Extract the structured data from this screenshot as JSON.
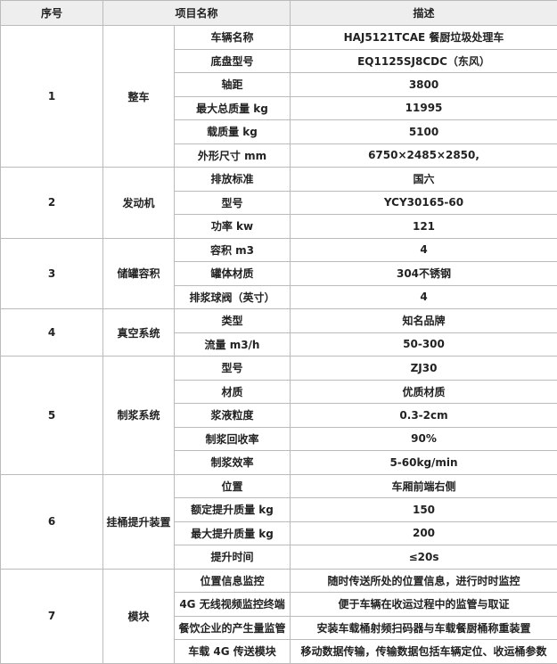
{
  "table": {
    "header": [
      "序号",
      "项目名称",
      "描述"
    ],
    "groups": [
      {
        "no": "1",
        "name": "整车",
        "items": [
          {
            "label": "车辆名称",
            "value": "HAJ5121TCAE 餐厨垃圾处理车"
          },
          {
            "label": "底盘型号",
            "value": "EQ1125SJ8CDC（东风）"
          },
          {
            "label": "轴距",
            "value": "3800"
          },
          {
            "label": "最大总质量 kg",
            "value": "11995"
          },
          {
            "label": "载质量 kg",
            "value": "5100"
          },
          {
            "label": "外形尺寸 mm",
            "value": "6750×2485×2850,"
          }
        ]
      },
      {
        "no": "2",
        "name": "发动机",
        "items": [
          {
            "label": "排放标准",
            "value": "国六"
          },
          {
            "label": "型号",
            "value": "YCY30165-60"
          },
          {
            "label": "功率 kw",
            "value": "121"
          }
        ]
      },
      {
        "no": "3",
        "name": "储罐容积",
        "items": [
          {
            "label": "容积 m3",
            "value": "4"
          },
          {
            "label": "罐体材质",
            "value": "304不锈钢"
          },
          {
            "label": "排浆球阀（英寸）",
            "value": "4"
          }
        ]
      },
      {
        "no": "4",
        "name": "真空系统",
        "items": [
          {
            "label": "类型",
            "value": "知名品牌"
          },
          {
            "label": "流量 m3/h",
            "value": "50-300"
          }
        ]
      },
      {
        "no": "5",
        "name": "制浆系统",
        "items": [
          {
            "label": "型号",
            "value": "ZJ30"
          },
          {
            "label": "材质",
            "value": "优质材质"
          },
          {
            "label": "浆液粒度",
            "value": "0.3-2cm"
          },
          {
            "label": "制浆回收率",
            "value": "90%"
          },
          {
            "label": "制浆效率",
            "value": "5-60kg/min"
          }
        ]
      },
      {
        "no": "6",
        "name": "挂桶提升装置",
        "items": [
          {
            "label": "位置",
            "value": "车厢前端右侧"
          },
          {
            "label": "额定提升质量 kg",
            "value": "150"
          },
          {
            "label": "最大提升质量 kg",
            "value": "200"
          },
          {
            "label": "提升时间",
            "value": "≤20s"
          }
        ]
      },
      {
        "no": "7",
        "name": "模块",
        "items": [
          {
            "label": "位置信息监控",
            "value": "随时传送所处的位置信息，进行时时监控"
          },
          {
            "label": "4G 无线视频监控终端",
            "value": "便于车辆在收运过程中的监管与取证"
          },
          {
            "label": "餐饮企业的产生量监管",
            "value": "安装车载桶射频扫码器与车载餐厨桶称重装置"
          },
          {
            "label": "车载 4G 传送模块",
            "value": "移动数据传输，传输数据包括车辆定位、收运桶参数"
          }
        ]
      }
    ]
  }
}
